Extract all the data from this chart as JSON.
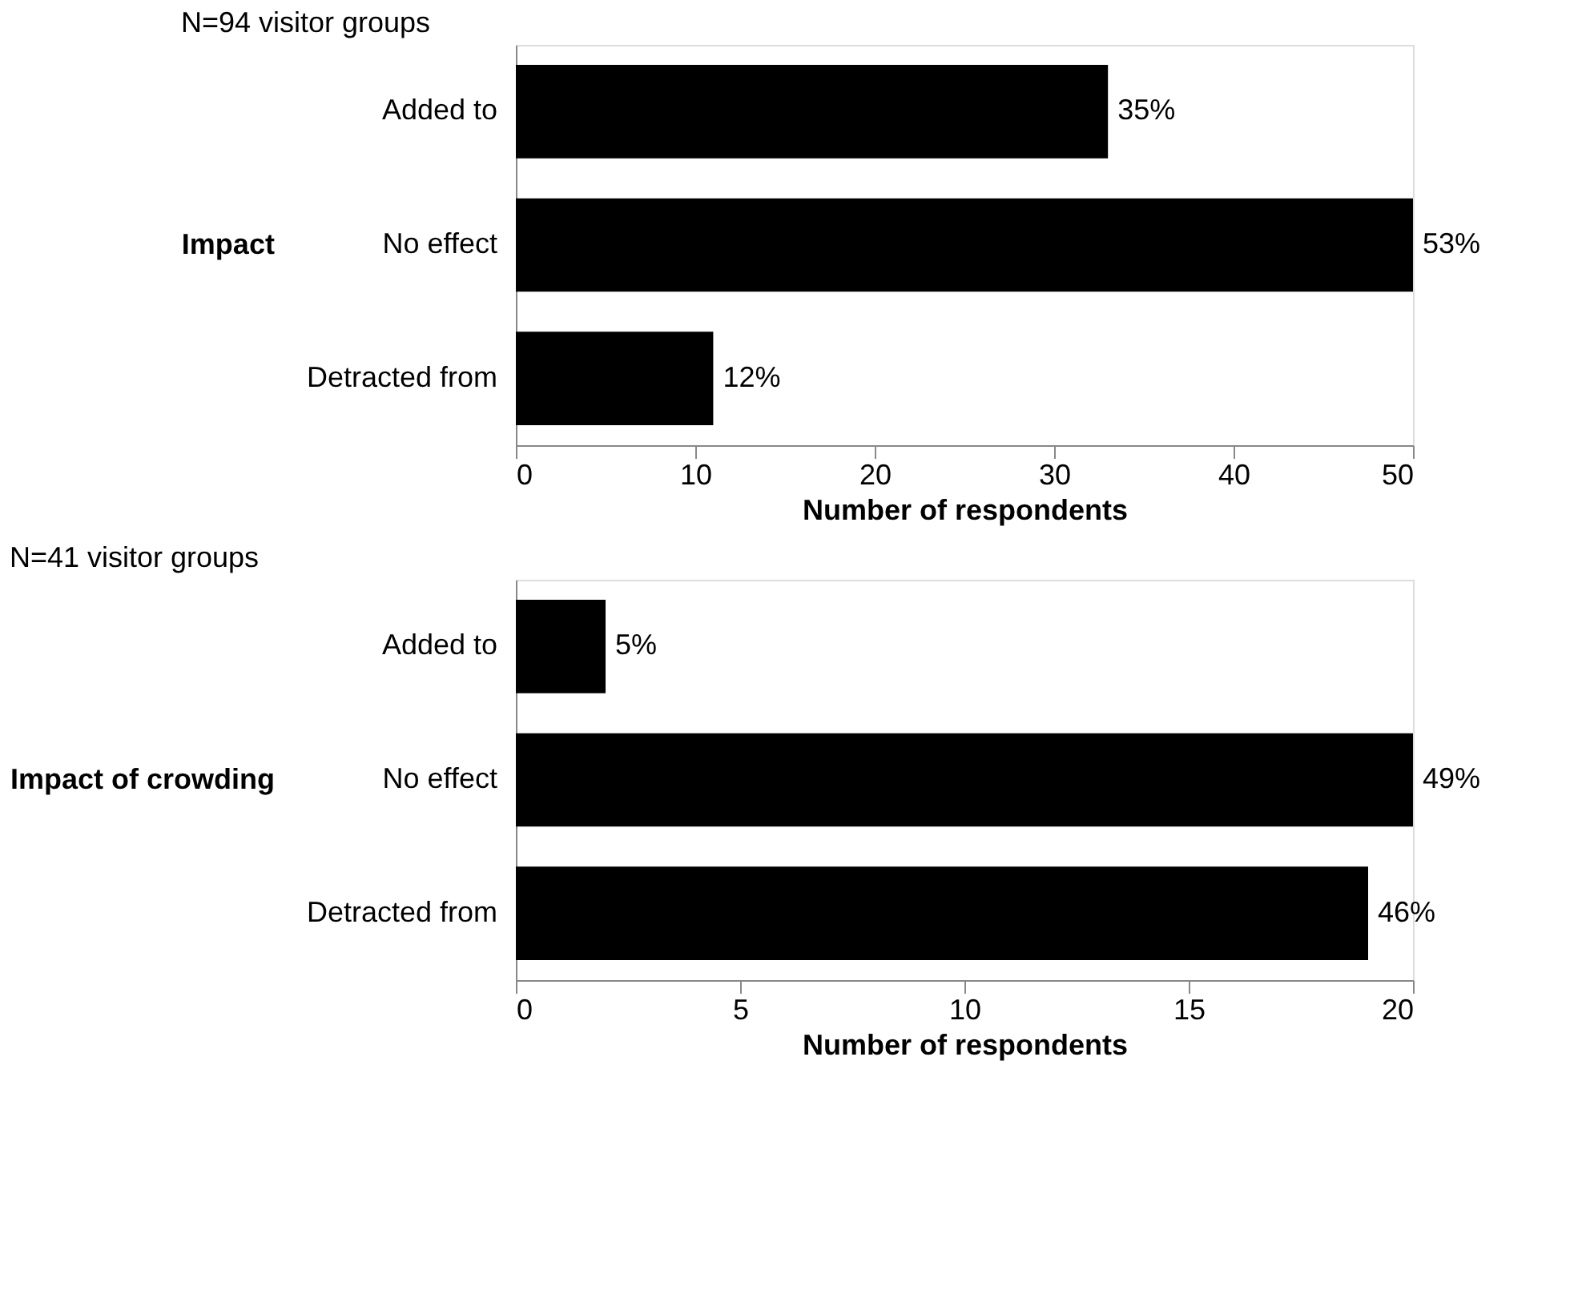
{
  "chart_data": [
    {
      "type": "bar",
      "orientation": "horizontal",
      "title": "N=94 visitor groups",
      "xlabel": "Number of respondents",
      "ylabel": "Impact",
      "categories": [
        "Added to",
        "No effect",
        "Detracted from"
      ],
      "values": [
        33,
        50,
        11
      ],
      "color": "#000000",
      "xlim": [
        0,
        50
      ],
      "xticks": [
        0,
        10,
        20,
        30,
        40,
        50
      ],
      "grid": false,
      "annotations": [
        {
          "text": "35%",
          "x": 33,
          "y": "Added to"
        },
        {
          "text": "53%",
          "x": 50,
          "y": "No effect"
        },
        {
          "text": "12%",
          "x": 11,
          "y": "Detracted from"
        }
      ]
    },
    {
      "type": "bar",
      "orientation": "horizontal",
      "title": "N=41 visitor groups",
      "xlabel": "Number of respondents",
      "ylabel": "Impact of crowding",
      "categories": [
        "Added to",
        "No effect",
        "Detracted from"
      ],
      "values": [
        2,
        20,
        19
      ],
      "color": "#000000",
      "xlim": [
        0,
        20
      ],
      "xticks": [
        0,
        5,
        10,
        15,
        20
      ],
      "grid": false,
      "annotations": [
        {
          "text": "5%",
          "x": 2,
          "y": "Added to"
        },
        {
          "text": "49%",
          "x": 20,
          "y": "No effect"
        },
        {
          "text": "46%",
          "x": 19,
          "y": "Detracted from"
        }
      ]
    }
  ]
}
